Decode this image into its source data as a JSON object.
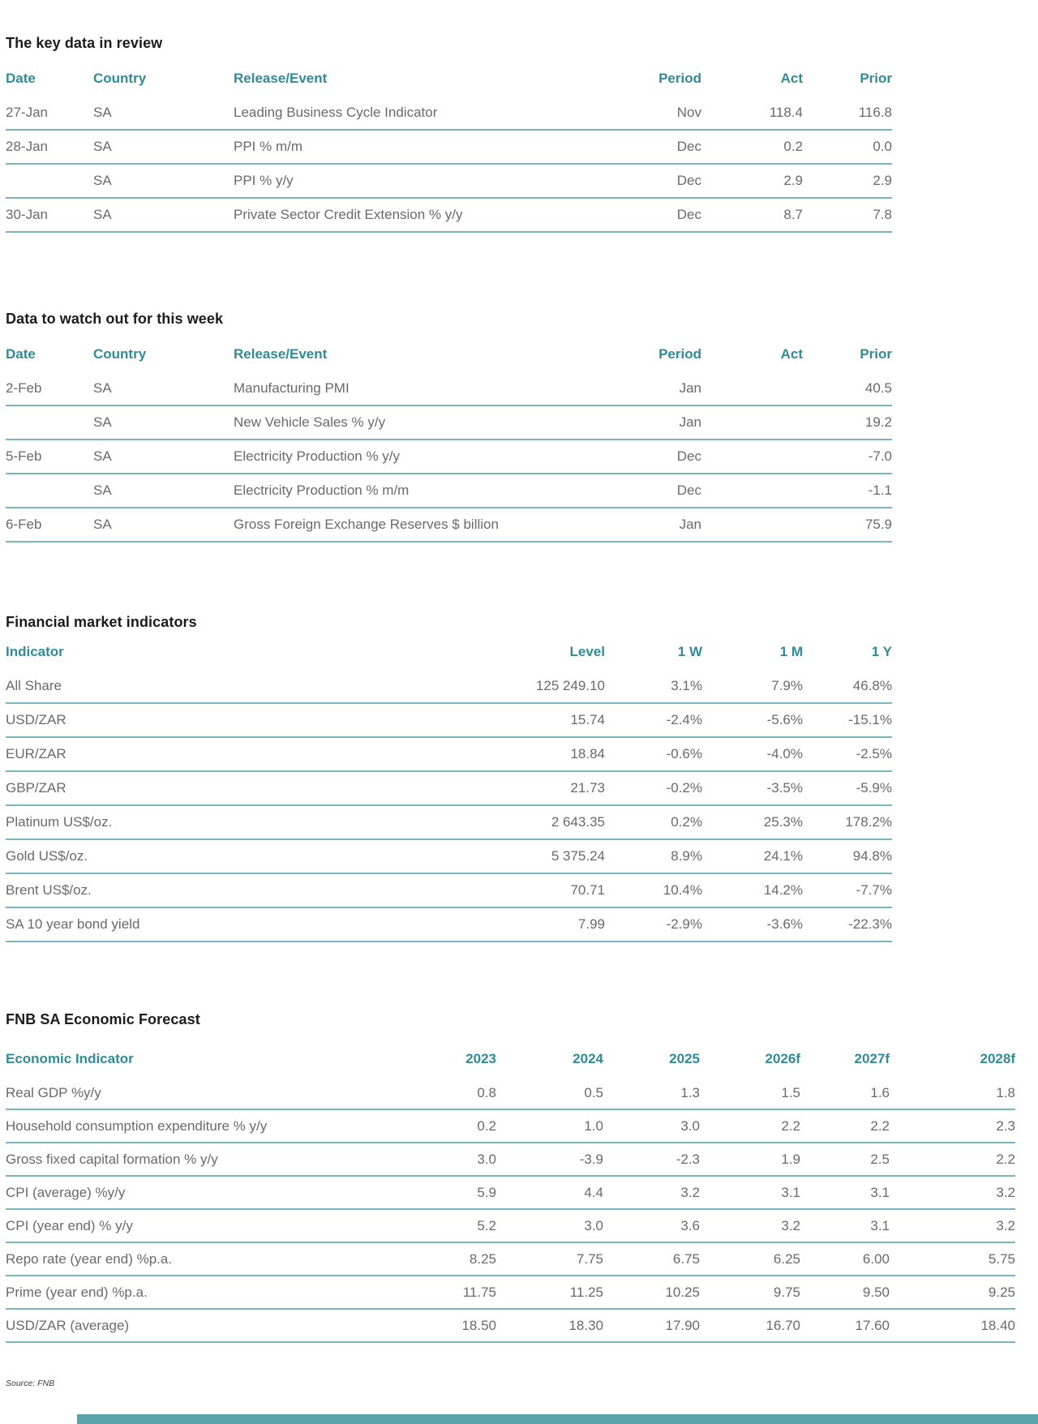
{
  "titles": {
    "review": "The key data in review",
    "watch": "Data to watch out for this week",
    "financial": "Financial market indicators",
    "forecast": "FNB SA Economic Forecast"
  },
  "review_table": {
    "headers": [
      "Date",
      "Country",
      "Release/Event",
      "Period",
      "Act",
      "Prior"
    ],
    "rows": [
      [
        "27-Jan",
        "SA",
        "Leading Business Cycle Indicator",
        "Nov",
        "118.4",
        "116.8"
      ],
      [
        "28-Jan",
        "SA",
        "PPI % m/m",
        "Dec",
        "0.2",
        "0.0"
      ],
      [
        "",
        "SA",
        "PPI % y/y",
        "Dec",
        "2.9",
        "2.9"
      ],
      [
        "30-Jan",
        "SA",
        "Private Sector Credit Extension % y/y",
        "Dec",
        "8.7",
        "7.8"
      ]
    ]
  },
  "watch_table": {
    "headers": [
      "Date",
      "Country",
      "Release/Event",
      "Period",
      "Act",
      "Prior"
    ],
    "rows": [
      [
        "2-Feb",
        "SA",
        "Manufacturing PMI",
        "Jan",
        "",
        "40.5"
      ],
      [
        "",
        "SA",
        "New Vehicle Sales % y/y",
        "Jan",
        "",
        "19.2"
      ],
      [
        "5-Feb",
        "SA",
        "Electricity Production % y/y",
        "Dec",
        "",
        "-7.0"
      ],
      [
        "",
        "SA",
        "Electricity Production % m/m",
        "Dec",
        "",
        "-1.1"
      ],
      [
        "6-Feb",
        "SA",
        "Gross Foreign Exchange Reserves $ billion",
        "Jan",
        "",
        "75.9"
      ]
    ]
  },
  "financial_table": {
    "headers": [
      "Indicator",
      "Level",
      "1 W",
      "1 M",
      "1 Y"
    ],
    "rows": [
      [
        "All Share",
        "125 249.10",
        "3.1%",
        "7.9%",
        "46.8%"
      ],
      [
        "USD/ZAR",
        "15.74",
        "-2.4%",
        "-5.6%",
        "-15.1%"
      ],
      [
        "EUR/ZAR",
        "18.84",
        "-0.6%",
        "-4.0%",
        "-2.5%"
      ],
      [
        "GBP/ZAR",
        "21.73",
        "-0.2%",
        "-3.5%",
        "-5.9%"
      ],
      [
        "Platinum US$/oz.",
        "2 643.35",
        "0.2%",
        "25.3%",
        "178.2%"
      ],
      [
        "Gold US$/oz.",
        "5 375.24",
        "8.9%",
        "24.1%",
        "94.8%"
      ],
      [
        "Brent US$/oz.",
        "70.71",
        "10.4%",
        "14.2%",
        "-7.7%"
      ],
      [
        "SA 10 year bond yield",
        "7.99",
        "-2.9%",
        "-3.6%",
        "-22.3%"
      ]
    ]
  },
  "forecast_table": {
    "headers": [
      "Economic Indicator",
      "2023",
      "2024",
      "2025",
      "2026f",
      "2027f",
      "2028f"
    ],
    "rows": [
      [
        "Real GDP %y/y",
        "0.8",
        "0.5",
        "1.3",
        "1.5",
        "1.6",
        "1.8"
      ],
      [
        "Household consumption expenditure % y/y",
        "0.2",
        "1.0",
        "3.0",
        "2.2",
        "2.2",
        "2.3"
      ],
      [
        "Gross fixed capital formation % y/y",
        "3.0",
        "-3.9",
        "-2.3",
        "1.9",
        "2.5",
        "2.2"
      ],
      [
        "CPI (average) %y/y",
        "5.9",
        "4.4",
        "3.2",
        "3.1",
        "3.1",
        "3.2"
      ],
      [
        "CPI (year end) % y/y",
        "5.2",
        "3.0",
        "3.6",
        "3.2",
        "3.1",
        "3.2"
      ],
      [
        "Repo rate (year end) %p.a.",
        "8.25",
        "7.75",
        "6.75",
        "6.25",
        "6.00",
        "5.75"
      ],
      [
        "Prime (year end) %p.a.",
        "11.75",
        "11.25",
        "10.25",
        "9.75",
        "9.50",
        "9.25"
      ],
      [
        "USD/ZAR (average)",
        "18.50",
        "18.30",
        "17.90",
        "16.70",
        "17.60",
        "18.40"
      ]
    ]
  },
  "footer": {
    "source": "Source: FNB"
  },
  "colors": {
    "header_teal": "#2f8c98",
    "row_line_teal": "#7ab5be",
    "body_gray": "#6a6a6a",
    "title_black": "#1c1c1c",
    "bottom_bar_teal": "#5aa4ae"
  }
}
